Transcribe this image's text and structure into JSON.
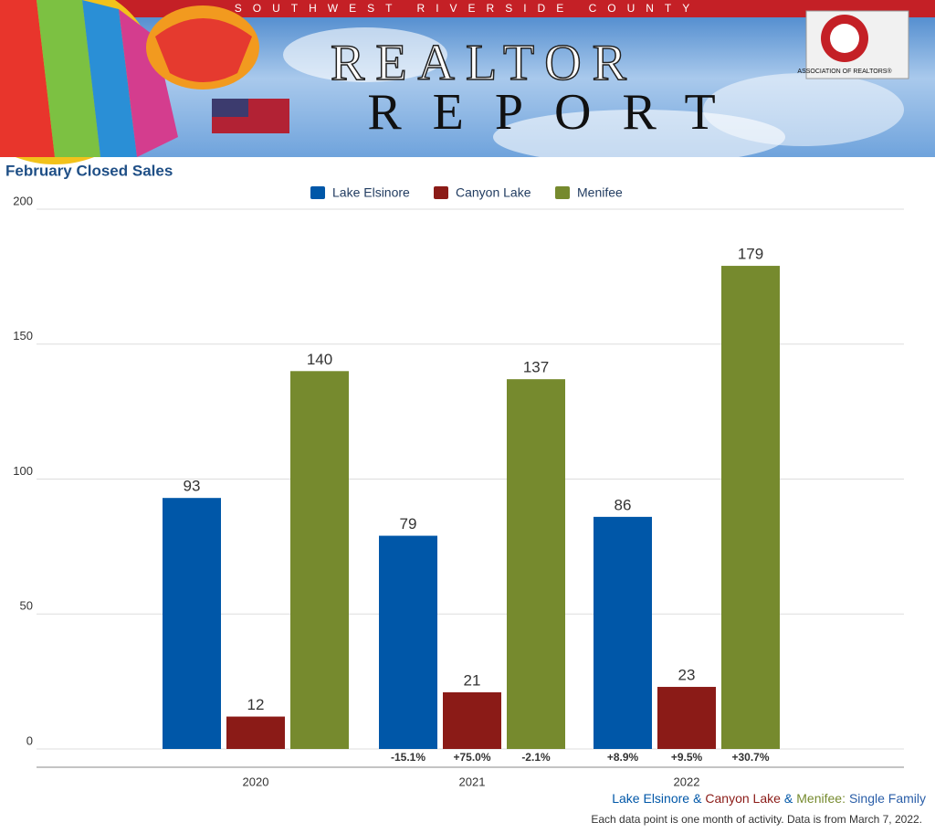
{
  "header": {
    "county": "SOUTHWEST RIVERSIDE COUNTY",
    "line1": "REALTOR",
    "line2": "REPORT",
    "logo_text": "ASSOCIATION OF REALTORS®"
  },
  "chart_data": {
    "type": "bar",
    "title": "February Closed Sales",
    "categories": [
      "2020",
      "2021",
      "2022"
    ],
    "series": [
      {
        "name": "Lake Elsinore",
        "color": "#0057a8",
        "values": [
          93,
          79,
          86
        ],
        "changes": [
          null,
          "-15.1%",
          "+8.9%"
        ]
      },
      {
        "name": "Canyon Lake",
        "color": "#8b1b17",
        "values": [
          12,
          21,
          23
        ],
        "changes": [
          null,
          "+75.0%",
          "+9.5%"
        ]
      },
      {
        "name": "Menifee",
        "color": "#768a2e",
        "values": [
          140,
          137,
          179
        ],
        "changes": [
          null,
          "-2.1%",
          "+30.7%"
        ]
      }
    ],
    "ylim": [
      0,
      200
    ],
    "yticks": [
      0,
      50,
      100,
      150,
      200
    ],
    "grid": true,
    "footer_parts": [
      "Lake Elsinore",
      "&",
      "Canyon Lake",
      "&",
      "Menifee:",
      "Single Family"
    ],
    "note": "Each data point is one month of activity. Data is from March 7, 2022."
  }
}
